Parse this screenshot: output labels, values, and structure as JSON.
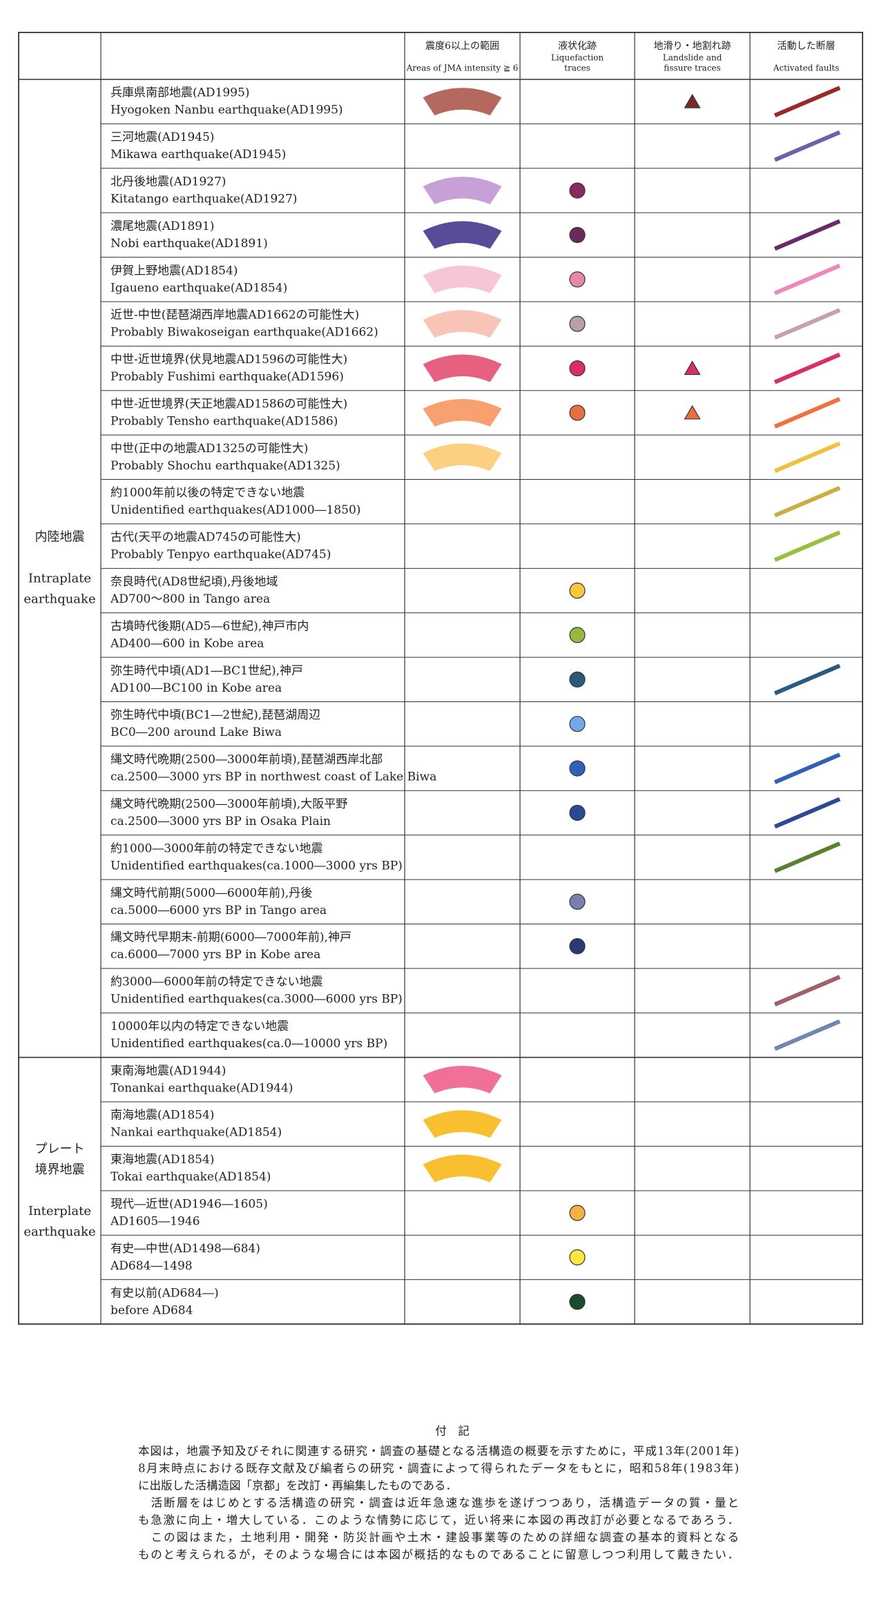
{
  "table": {
    "columns": [
      {
        "jp": "震度6以上の範囲",
        "en": [
          "Areas of JMA intensity ≧ 6"
        ]
      },
      {
        "jp": "液状化跡",
        "en": [
          "Liquefaction",
          "traces"
        ]
      },
      {
        "jp": "地滑り・地割れ跡",
        "en": [
          "Landslide and",
          "fissure traces"
        ]
      },
      {
        "jp": "活動した断層",
        "en": [
          "Activated faults"
        ]
      }
    ],
    "groups": [
      {
        "jp": [
          "内陸地震"
        ],
        "en": [
          "Intraplate",
          "earthquake"
        ],
        "rows": 22
      },
      {
        "jp": [
          "プレート",
          "境界地震"
        ],
        "en": [
          "Interplate",
          "earthquake"
        ],
        "rows": 6
      }
    ],
    "rows": [
      {
        "jp": "兵庫県南部地震(AD1995)",
        "en": "Hyogoken Nanbu earthquake(AD1995)",
        "area": "#b5685e",
        "liquefaction": null,
        "landslide": "#7a2a24",
        "fault": "#9a2a2a"
      },
      {
        "jp": "三河地震(AD1945)",
        "en": "Mikawa earthquake(AD1945)",
        "area": null,
        "liquefaction": null,
        "landslide": null,
        "fault": "#7060a8"
      },
      {
        "jp": "北丹後地震(AD1927)",
        "en": "Kitatango earthquake(AD1927)",
        "area": "#c8a0d8",
        "liquefaction": "#8a2a5a",
        "landslide": null,
        "fault": null
      },
      {
        "jp": "濃尾地震(AD1891)",
        "en": "Nobi earthquake(AD1891)",
        "area": "#5a4a9a",
        "liquefaction": "#6a2a5a",
        "landslide": null,
        "fault": "#6a2a6a"
      },
      {
        "jp": "伊賀上野地震(AD1854)",
        "en": "Igaueno earthquake(AD1854)",
        "area": "#f8c4d8",
        "liquefaction": "#e888a8",
        "landslide": null,
        "fault": "#ee88b8"
      },
      {
        "jp": "近世-中世(琵琶湖西岸地震AD1662の可能性大)",
        "en": "Probably Biwakoseigan earthquake(AD1662)",
        "area": "#f8c4b8",
        "liquefaction": "#b8a0a8",
        "landslide": null,
        "fault": "#c8a0a8"
      },
      {
        "jp": "中世-近世境界(伏見地震AD1596の可能性大)",
        "en": "Probably Fushimi earthquake(AD1596)",
        "area": "#e86080",
        "liquefaction": "#d83060",
        "landslide": "#d83060",
        "fault": "#d83060"
      },
      {
        "jp": "中世-近世境界(天正地震AD1586の可能性大)",
        "en": "Probably Tensho earthquake(AD1586)",
        "area": "#f8a070",
        "liquefaction": "#e87040",
        "landslide": "#e87040",
        "fault": "#f07040"
      },
      {
        "jp": "中世(正中の地震AD1325の可能性大)",
        "en": "Probably Shochu earthquake(AD1325)",
        "area": "#fbd080",
        "liquefaction": null,
        "landslide": null,
        "fault": "#f0c040"
      },
      {
        "jp": "約1000年前以後の特定できない地震",
        "en": "Unidentified earthquakes(AD1000―1850)",
        "area": null,
        "liquefaction": null,
        "landslide": null,
        "fault": "#c8b040"
      },
      {
        "jp": "古代(天平の地震AD745の可能性大)",
        "en": "Probably Tenpyo earthquake(AD745)",
        "area": null,
        "liquefaction": null,
        "landslide": null,
        "fault": "#98c040"
      },
      {
        "jp": "奈良時代(AD8世紀頃),丹後地域",
        "en": "AD700～800 in Tango area",
        "area": null,
        "liquefaction": "#f8c840",
        "landslide": null,
        "fault": null
      },
      {
        "jp": "古墳時代後期(AD5―6世紀),神戸市内",
        "en": "AD400―600 in Kobe area",
        "area": null,
        "liquefaction": "#98b840",
        "landslide": null,
        "fault": null
      },
      {
        "jp": "弥生時代中頃(AD1―BC1世紀),神戸",
        "en": "AD100―BC100 in Kobe area",
        "area": null,
        "liquefaction": "#2a5a7a",
        "landslide": null,
        "fault": "#2a5a80"
      },
      {
        "jp": "弥生時代中頃(BC1―2世紀),琵琶湖周辺",
        "en": "BC0―200 around Lake Biwa",
        "area": null,
        "liquefaction": "#70a8e8",
        "landslide": null,
        "fault": null
      },
      {
        "jp": "縄文時代晩期(2500―3000年前頃),琵琶湖西岸北部",
        "en": "ca.2500―3000 yrs BP in northwest coast of Lake Biwa",
        "area": null,
        "liquefaction": "#3060b8",
        "landslide": null,
        "fault": "#3060b8"
      },
      {
        "jp": "縄文時代晩期(2500―3000年前頃),大阪平野",
        "en": "ca.2500―3000 yrs BP in Osaka Plain",
        "area": null,
        "liquefaction": "#2a4a98",
        "landslide": null,
        "fault": "#2a4a98"
      },
      {
        "jp": "約1000―3000年前の特定できない地震",
        "en": "Unidentified earthquakes(ca.1000―3000 yrs BP)",
        "area": null,
        "liquefaction": null,
        "landslide": null,
        "fault": "#5a8030"
      },
      {
        "jp": "縄文時代前期(5000―6000年前),丹後",
        "en": "ca.5000―6000 yrs BP in Tango area",
        "area": null,
        "liquefaction": "#7880b0",
        "landslide": null,
        "fault": null
      },
      {
        "jp": "縄文時代早期末-前期(6000―7000年前),神戸",
        "en": "ca.6000―7000 yrs BP in Kobe area",
        "area": null,
        "liquefaction": "#2a3a78",
        "landslide": null,
        "fault": null
      },
      {
        "jp": "約3000―6000年前の特定できない地震",
        "en": "Unidentified earthquakes(ca.3000―6000 yrs BP)",
        "area": null,
        "liquefaction": null,
        "landslide": null,
        "fault": "#a06068"
      },
      {
        "jp": "10000年以内の特定できない地震",
        "en": "Unidentified earthquakes(ca.0―10000 yrs BP)",
        "area": null,
        "liquefaction": null,
        "landslide": null,
        "fault": "#7088b0"
      },
      {
        "jp": "東南海地震(AD1944)",
        "en": "Tonankai earthquake(AD1944)",
        "area": "#f07098",
        "liquefaction": null,
        "landslide": null,
        "fault": null
      },
      {
        "jp": "南海地震(AD1854)",
        "en": "Nankai earthquake(AD1854)",
        "area": "#f8c030",
        "liquefaction": null,
        "landslide": null,
        "fault": null
      },
      {
        "jp": "東海地震(AD1854)",
        "en": "Tokai earthquake(AD1854)",
        "area": "#f8c030",
        "liquefaction": null,
        "landslide": null,
        "fault": null
      },
      {
        "jp": "現代―近世(AD1946―1605)",
        "en": "AD1605―1946",
        "area": null,
        "liquefaction": "#f8b040",
        "landslide": null,
        "fault": null
      },
      {
        "jp": "有史―中世(AD1498―684)",
        "en": "AD684―1498",
        "area": null,
        "liquefaction": "#f8e840",
        "landslide": null,
        "fault": null
      },
      {
        "jp": "有史以前(AD684―)",
        "en": "before AD684",
        "area": null,
        "liquefaction": "#1a4a30",
        "landslide": null,
        "fault": null
      }
    ]
  },
  "notes": {
    "title": "付　記",
    "lines": [
      "本図は，地震予知及びそれに関連する研究・調査の基礎となる活構造の概要を示すために，平成13年(2001年)",
      "8月末時点における既存文献及び編者らの研究・調査によって得られたデータをもとに，昭和58年(1983年)",
      "に出版した活構造図「京都」を改訂・再編集したものである．",
      "　活断層をはじめとする活構造の研究・調査は近年急速な進歩を遂げつつあり，活構造データの質・量と",
      "も急激に向上・増大している．このような情勢に応じて，近い将来に本図の再改訂が必要となるであろう．",
      "　この図はまた，土地利用・開発・防災計画や土木・建設事業等のための詳細な調査の基本的資料となる",
      "ものと考えられるが，そのような場合には本図が概括的なものであることに留意しつつ利用して戴きたい．"
    ]
  }
}
